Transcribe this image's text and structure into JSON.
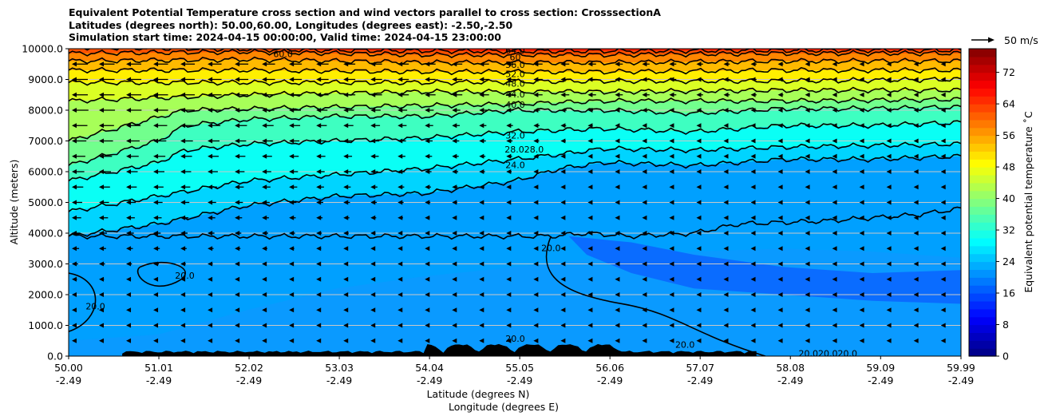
{
  "title_lines": [
    "Equivalent Potential Temperature cross section and wind vectors parallel to cross section: CrosssectionA",
    "Latitudes (degrees north): 50.00,60.00, Longitudes (degrees east): -2.50,-2.50",
    "Simulation start time: 2024-04-15 00:00:00, Valid time: 2024-04-15 23:00:00"
  ],
  "chart_data": {
    "type": "heatmap",
    "title": "Equivalent Potential Temperature cross section and wind vectors parallel to cross section: CrosssectionA",
    "ylabel": "Altitude (meters)",
    "xlabel_lines": [
      "Latitude (degrees N)",
      "Longitude (degrees E)"
    ],
    "ylim": [
      0,
      10000
    ],
    "xlim": [
      50.0,
      59.99
    ],
    "y_ticks": [
      "0.0",
      "1000.0",
      "2000.0",
      "3000.0",
      "4000.0",
      "5000.0",
      "6000.0",
      "7000.0",
      "8000.0",
      "9000.0",
      "10000.0"
    ],
    "y_tick_values": [
      0,
      1000,
      2000,
      3000,
      4000,
      5000,
      6000,
      7000,
      8000,
      9000,
      10000
    ],
    "x_ticks": [
      {
        "lat": "50.00",
        "lon": "-2.49"
      },
      {
        "lat": "51.01",
        "lon": "-2.49"
      },
      {
        "lat": "52.02",
        "lon": "-2.49"
      },
      {
        "lat": "53.03",
        "lon": "-2.49"
      },
      {
        "lat": "54.04",
        "lon": "-2.49"
      },
      {
        "lat": "55.05",
        "lon": "-2.49"
      },
      {
        "lat": "56.06",
        "lon": "-2.49"
      },
      {
        "lat": "57.07",
        "lon": "-2.49"
      },
      {
        "lat": "58.08",
        "lon": "-2.49"
      },
      {
        "lat": "59.09",
        "lon": "-2.49"
      },
      {
        "lat": "59.99",
        "lon": "-2.49"
      }
    ],
    "x_tick_values": [
      50.0,
      51.01,
      52.02,
      53.03,
      54.04,
      55.05,
      56.06,
      57.07,
      58.08,
      59.09,
      59.99
    ],
    "grid": "horizontal",
    "colorbar": {
      "label": "Equivalent potential temperature ˚C",
      "ticks": [
        "0",
        "8",
        "16",
        "24",
        "32",
        "40",
        "48",
        "56",
        "64",
        "72"
      ],
      "tick_values": [
        0,
        8,
        16,
        24,
        32,
        40,
        48,
        56,
        64,
        72
      ],
      "range": [
        0,
        78
      ],
      "colormap": "jet"
    },
    "quiver_key": "50 m/s",
    "contour_labels": [
      {
        "text": "60.0",
        "lat": 52.4,
        "alt": 9800
      },
      {
        "text": "64.0",
        "lat": 55.0,
        "alt": 9920
      },
      {
        "text": "60",
        "lat": 55.0,
        "alt": 9700
      },
      {
        "text": "56.0",
        "lat": 55.0,
        "alt": 9450
      },
      {
        "text": "52.0",
        "lat": 55.0,
        "alt": 9150
      },
      {
        "text": "48.0",
        "lat": 55.0,
        "alt": 8850
      },
      {
        "text": "44.0",
        "lat": 55.0,
        "alt": 8500
      },
      {
        "text": "40.0",
        "lat": 55.0,
        "alt": 8150
      },
      {
        "text": "32.0",
        "lat": 55.0,
        "alt": 7150
      },
      {
        "text": "28.028.0",
        "lat": 55.1,
        "alt": 6700
      },
      {
        "text": "24.0",
        "lat": 55.0,
        "alt": 6200
      },
      {
        "text": "20.0",
        "lat": 51.3,
        "alt": 2600
      },
      {
        "text": "20.0",
        "lat": 50.3,
        "alt": 1600
      },
      {
        "text": "20.0",
        "lat": 55.4,
        "alt": 3500
      },
      {
        "text": "20.0",
        "lat": 55.0,
        "alt": 550
      },
      {
        "text": "20.0",
        "lat": 56.9,
        "alt": 350
      },
      {
        "text": "20.020.020.0",
        "lat": 58.5,
        "alt": 60
      }
    ],
    "annotation_values": {
      "contour_levels_labeled": [
        20,
        24,
        28,
        32,
        40,
        44,
        48,
        52,
        56,
        60,
        64
      ]
    }
  }
}
